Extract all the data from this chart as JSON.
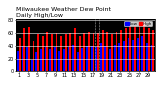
{
  "title": "Milwaukee Weather Dew Point",
  "subtitle": "Daily High/Low",
  "high_values": [
    52,
    68,
    70,
    48,
    58,
    55,
    62,
    58,
    60,
    55,
    58,
    60,
    68,
    55,
    60,
    62,
    60,
    60,
    65,
    62,
    58,
    62,
    65,
    68,
    72,
    72,
    75,
    78,
    68,
    65
  ],
  "low_values": [
    32,
    40,
    38,
    18,
    30,
    35,
    38,
    35,
    38,
    32,
    35,
    38,
    42,
    30,
    36,
    40,
    40,
    38,
    44,
    40,
    35,
    42,
    45,
    48,
    52,
    50,
    52,
    55,
    45,
    42
  ],
  "high_color": "#ff0000",
  "low_color": "#0000ff",
  "bg_color": "#000000",
  "fig_bg_color": "#ffffff",
  "ytick_labels": [
    "0",
    "20",
    "40",
    "60",
    "80"
  ],
  "ytick_vals": [
    0,
    20,
    40,
    60,
    80
  ],
  "ylim": [
    0,
    82
  ],
  "bar_width": 0.4,
  "legend_labels": [
    "Low",
    "High"
  ],
  "legend_colors": [
    "#0000ff",
    "#ff0000"
  ],
  "title_fontsize": 4.5,
  "tick_fontsize": 3.5
}
